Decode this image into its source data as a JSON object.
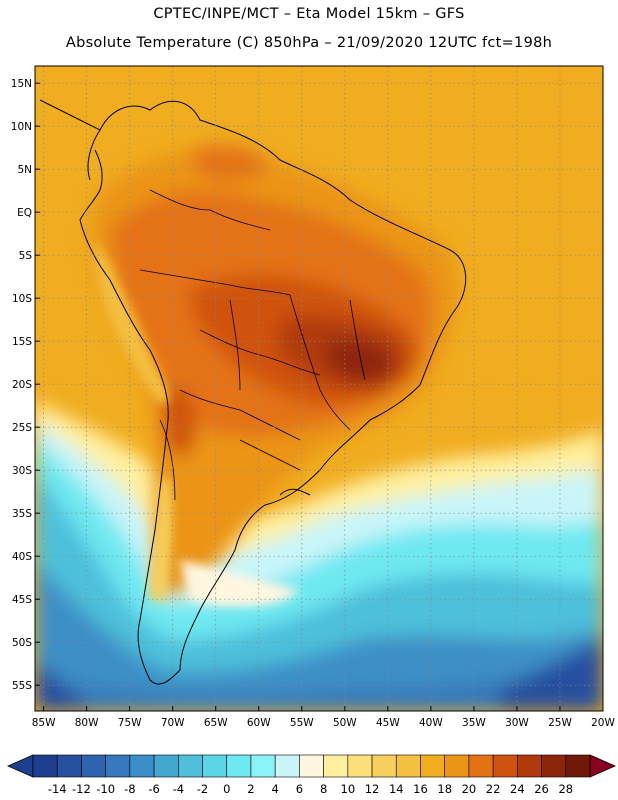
{
  "header": {
    "line1": "CPTEC/INPE/MCT –  Eta Model 15km – GFS",
    "line2": "Absolute Temperature (C) 850hPa – 21/09/2020 12UTC fct=198h"
  },
  "axes": {
    "lat_labels": [
      "15N",
      "10N",
      "5N",
      "EQ",
      "5S",
      "10S",
      "15S",
      "20S",
      "25S",
      "30S",
      "35S",
      "40S",
      "45S",
      "50S",
      "55S"
    ],
    "lat_values": [
      15,
      10,
      5,
      0,
      -5,
      -10,
      -15,
      -20,
      -25,
      -30,
      -35,
      -40,
      -45,
      -50,
      -55
    ],
    "lon_labels": [
      "85W",
      "80W",
      "75W",
      "70W",
      "65W",
      "60W",
      "55W",
      "50W",
      "45W",
      "40W",
      "35W",
      "30W",
      "25W",
      "20W"
    ],
    "lon_values": [
      -85,
      -80,
      -75,
      -70,
      -65,
      -60,
      -55,
      -50,
      -45,
      -40,
      -35,
      -30,
      -25,
      -20
    ],
    "lat_range": [
      -58,
      17
    ],
    "lon_range": [
      -86,
      -20
    ]
  },
  "colorbar": {
    "labels": [
      "-14",
      "-12",
      "-10",
      "-8",
      "-6",
      "-4",
      "-2",
      "0",
      "2",
      "4",
      "6",
      "8",
      "10",
      "12",
      "14",
      "16",
      "18",
      "20",
      "22",
      "24",
      "26",
      "28"
    ],
    "colors": [
      "#1c3f8f",
      "#27509f",
      "#2e63ae",
      "#3578bb",
      "#3c8fc6",
      "#44a7cf",
      "#4ec0da",
      "#5bd6e6",
      "#6ee8f1",
      "#8cf3f7",
      "#c9f5f9",
      "#fff7e0",
      "#fff0a0",
      "#fbe07a",
      "#f7cf5c",
      "#f4c040",
      "#f0ad20",
      "#eb9415",
      "#e47212",
      "#cf530f",
      "#b13a0c",
      "#8d250a",
      "#6f1a08",
      "#8b0020"
    ]
  },
  "map": {
    "region": "South America",
    "variable": "Absolute Temperature (C) 850hPa"
  }
}
